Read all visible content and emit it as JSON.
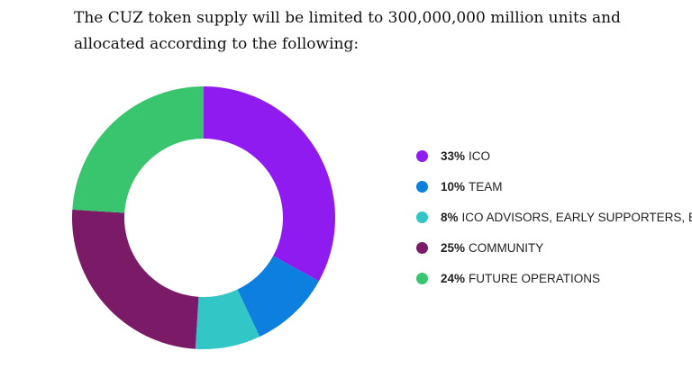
{
  "intro": {
    "text": "The CUZ token supply will be limited to 300,000,000 million units and allocated according to the following:"
  },
  "chart_data": {
    "type": "pie",
    "donut": true,
    "categories": [
      "ICO",
      "TEAM",
      "ICO ADVISORS, EARLY SUPPORTERS, BO",
      "COMMUNITY",
      "FUTURE OPERATIONS"
    ],
    "values": [
      33,
      10,
      8,
      25,
      24
    ],
    "value_labels": [
      "33%",
      "10%",
      "8%",
      "25%",
      "24%"
    ],
    "colors": [
      "#8f1bf0",
      "#0d80df",
      "#32c6c7",
      "#7b1b68",
      "#38c56d"
    ],
    "legend_position": "right"
  }
}
